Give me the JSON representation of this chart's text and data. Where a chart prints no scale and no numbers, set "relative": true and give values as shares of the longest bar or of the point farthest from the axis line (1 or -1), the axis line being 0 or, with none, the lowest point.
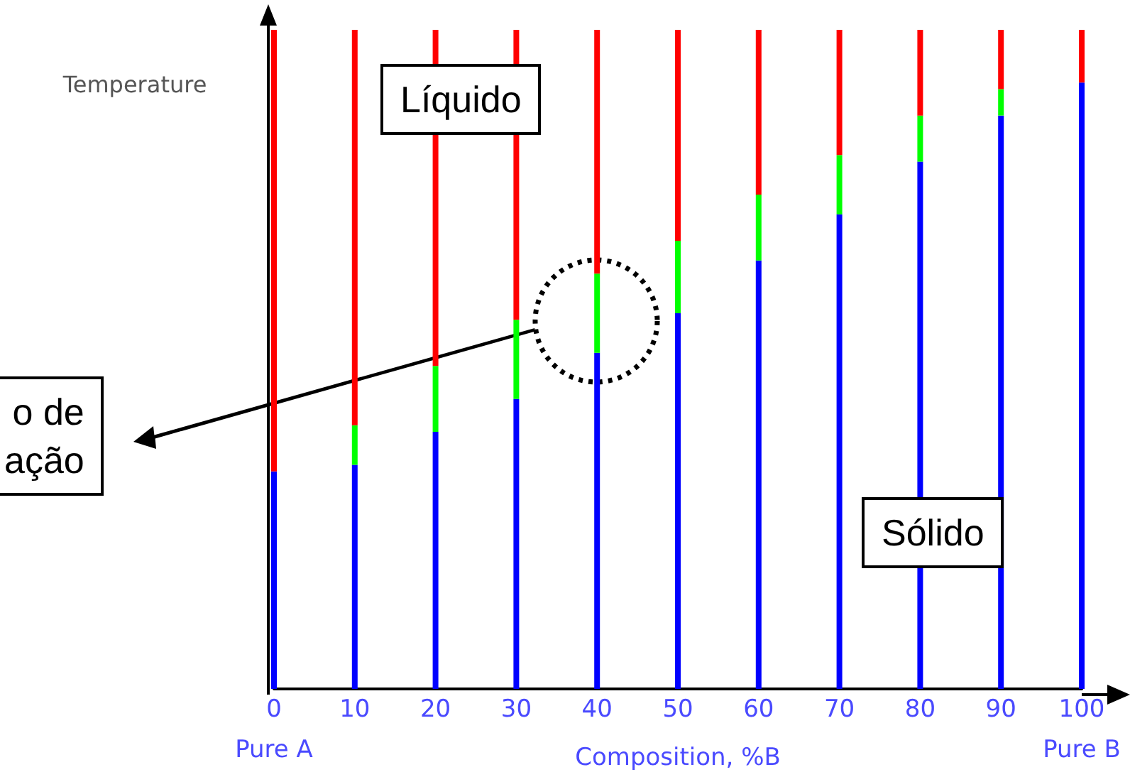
{
  "chart_data": {
    "type": "bar",
    "relative": true,
    "stacked": true,
    "ylabel": "Temperature",
    "xlabel": "Composition, %B",
    "categories": [
      "0",
      "10",
      "20",
      "30",
      "40",
      "50",
      "60",
      "70",
      "80",
      "90",
      "100"
    ],
    "series": [
      {
        "color": "#0000ff",
        "values": [
          0.33,
          0.34,
          0.39,
          0.44,
          0.51,
          0.57,
          0.65,
          0.72,
          0.8,
          0.87,
          0.92
        ]
      },
      {
        "color": "#00ff00",
        "values": [
          0,
          0.06,
          0.1,
          0.12,
          0.12,
          0.11,
          0.1,
          0.09,
          0.07,
          0.04,
          0
        ]
      },
      {
        "color": "#ff0000",
        "values": [
          0.67,
          0.6,
          0.51,
          0.44,
          0.37,
          0.32,
          0.25,
          0.19,
          0.13,
          0.09,
          0.08
        ]
      }
    ],
    "annotations": [
      "Pure A",
      "Pure B",
      "Líquido",
      "Sólido",
      "o de\nação"
    ]
  }
}
